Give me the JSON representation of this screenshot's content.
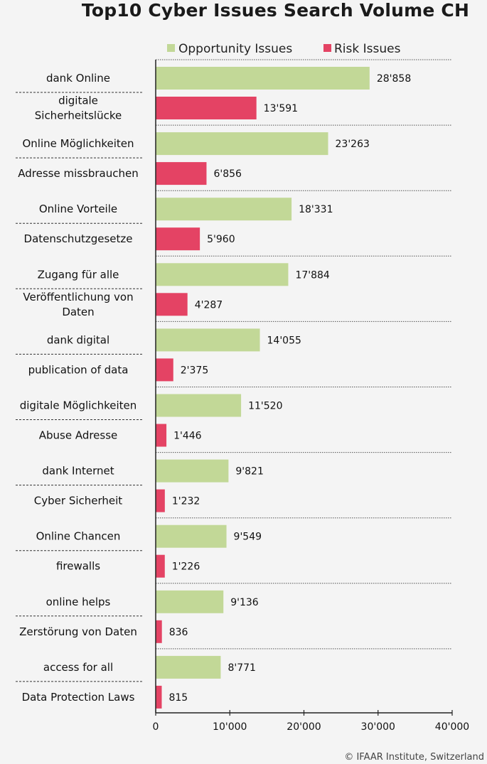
{
  "chart_data": {
    "type": "bar",
    "orientation": "horizontal",
    "title": "Top10 Cyber Issues Search Volume CH",
    "xlim": [
      0,
      40000
    ],
    "xticks": [
      0,
      10000,
      20000,
      30000,
      40000
    ],
    "xtick_labels": [
      "0",
      "10'000",
      "20'000",
      "30'000",
      "40'000"
    ],
    "legend_position": "top",
    "series": [
      {
        "name": "Opportunity Issues",
        "color": "#c2d897"
      },
      {
        "name": "Risk Issues",
        "color": "#e44364"
      }
    ],
    "pairs": [
      {
        "opportunity": {
          "label": "dank Online",
          "value": 28858,
          "value_label": "28'858"
        },
        "risk": {
          "label": "digitale Sicherheitslücke",
          "value": 13591,
          "value_label": "13'591"
        }
      },
      {
        "opportunity": {
          "label": "Online Möglichkeiten",
          "value": 23263,
          "value_label": "23'263"
        },
        "risk": {
          "label": "Adresse missbrauchen",
          "value": 6856,
          "value_label": "6'856"
        }
      },
      {
        "opportunity": {
          "label": "Online Vorteile",
          "value": 18331,
          "value_label": "18'331"
        },
        "risk": {
          "label": "Datenschutzgesetze",
          "value": 5960,
          "value_label": "5'960"
        }
      },
      {
        "opportunity": {
          "label": "Zugang für alle",
          "value": 17884,
          "value_label": "17'884"
        },
        "risk": {
          "label": "Veröffentlichung von Daten",
          "value": 4287,
          "value_label": "4'287"
        }
      },
      {
        "opportunity": {
          "label": "dank digital",
          "value": 14055,
          "value_label": "14'055"
        },
        "risk": {
          "label": "publication of data",
          "value": 2375,
          "value_label": "2'375"
        }
      },
      {
        "opportunity": {
          "label": "digitale Möglichkeiten",
          "value": 11520,
          "value_label": "11'520"
        },
        "risk": {
          "label": "Abuse Adresse",
          "value": 1446,
          "value_label": "1'446"
        }
      },
      {
        "opportunity": {
          "label": "dank Internet",
          "value": 9821,
          "value_label": "9'821"
        },
        "risk": {
          "label": "Cyber Sicherheit",
          "value": 1232,
          "value_label": "1'232"
        }
      },
      {
        "opportunity": {
          "label": "Online Chancen",
          "value": 9549,
          "value_label": "9'549"
        },
        "risk": {
          "label": "firewalls",
          "value": 1226,
          "value_label": "1'226"
        }
      },
      {
        "opportunity": {
          "label": "online helps",
          "value": 9136,
          "value_label": "9'136"
        },
        "risk": {
          "label": "Zerstörung von Daten",
          "value": 836,
          "value_label": "836"
        }
      },
      {
        "opportunity": {
          "label": "access for all",
          "value": 8771,
          "value_label": "8'771"
        },
        "risk": {
          "label": "Data Protection Laws",
          "value": 815,
          "value_label": "815"
        }
      }
    ]
  },
  "footer": {
    "credit": "© IFAAR Institute, Switzerland"
  }
}
